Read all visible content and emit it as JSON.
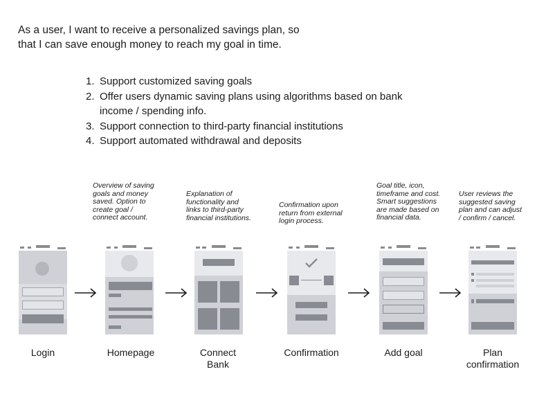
{
  "user_story": {
    "line1": "As a user, I want to receive a personalized savings plan, so",
    "line2": "that I can save enough money to reach my goal in time."
  },
  "requirements": [
    {
      "num": "1.",
      "lines": [
        "Support customized saving goals"
      ]
    },
    {
      "num": "2.",
      "lines": [
        "Offer users dynamic saving plans using algorithms based on bank",
        "income / spending info."
      ]
    },
    {
      "num": "3.",
      "lines": [
        "Support connection to third-party financial institutions"
      ]
    },
    {
      "num": "4.",
      "lines": [
        "Support automated withdrawal and deposits"
      ]
    }
  ],
  "flow": {
    "arrow_glyph": "→",
    "screens": [
      {
        "label": [
          "Login"
        ],
        "note": []
      },
      {
        "label": [
          "Homepage"
        ],
        "note": [
          "Overview of saving",
          "goals and money",
          "saved. Option to",
          "create goal /",
          "connect account."
        ]
      },
      {
        "label": [
          "Connect",
          "Bank"
        ],
        "note": [
          "Explanation of",
          "functionality and",
          "links to third-party",
          "financial institutions."
        ]
      },
      {
        "label": [
          "Confirmation"
        ],
        "note": [
          "Confirmation upon",
          "return from external",
          "login process."
        ]
      },
      {
        "label": [
          "Add goal"
        ],
        "note": [
          "Goal title, icon,",
          "timeframe and cost.",
          "Smart suggestions",
          "are made based on",
          "financial data."
        ]
      },
      {
        "label": [
          "Plan",
          "confirmation"
        ],
        "note": [
          "User reviews the",
          "suggested saving",
          "plan and can adjust",
          "/ confirm / cancel."
        ]
      }
    ]
  }
}
